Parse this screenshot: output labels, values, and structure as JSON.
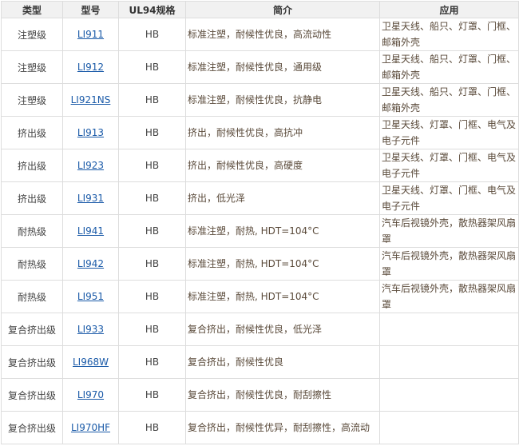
{
  "headers": [
    "类型",
    "型号",
    "UL94规格",
    "简介",
    "应用"
  ],
  "rows": [
    {
      "type": "注塑级",
      "model": "LI911",
      "ul": "HB",
      "desc": "标准注塑，耐候性优良，高流动性",
      "app": "卫星天线、船只、灯罩、门框、邮箱外壳"
    },
    {
      "type": "注塑级",
      "model": "LI912",
      "ul": "HB",
      "desc": "标准注塑，耐候性优良，通用级",
      "app": "卫星天线、船只、灯罩、门框、邮箱外壳"
    },
    {
      "type": "注塑级",
      "model": "LI921NS",
      "ul": "HB",
      "desc": "标准注塑，耐候性优良，抗静电",
      "app": "卫星天线、船只、灯罩、门框、邮箱外壳"
    },
    {
      "type": "挤出级",
      "model": "LI913",
      "ul": "HB",
      "desc": "挤出，耐候性优良，高抗冲",
      "app": "卫星天线、灯罩、门框、电气及电子元件"
    },
    {
      "type": "挤出级",
      "model": "LI923",
      "ul": "HB",
      "desc": "挤出，耐候性优良，高硬度",
      "app": "卫星天线、灯罩、门框、电气及电子元件"
    },
    {
      "type": "挤出级",
      "model": "LI931",
      "ul": "HB",
      "desc": "挤出，低光泽",
      "app": "卫星天线、灯罩、门框、电气及电子元件"
    },
    {
      "type": "耐热级",
      "model": "LI941",
      "ul": "HB",
      "desc": "标准注塑，耐热, HDT=104°C",
      "app": "汽车后视镜外壳，散热器架风扇罩"
    },
    {
      "type": "耐热级",
      "model": "LI942",
      "ul": "HB",
      "desc": "标准注塑，耐热, HDT=104°C",
      "app": "汽车后视镜外壳，散热器架风扇罩"
    },
    {
      "type": "耐热级",
      "model": "LI951",
      "ul": "HB",
      "desc": "标准注塑，耐热, HDT=104°C",
      "app": "汽车后视镜外壳，散热器架风扇罩"
    },
    {
      "type": "复合挤出级",
      "model": "LI933",
      "ul": "HB",
      "desc": "复合挤出，耐候性优良，低光泽",
      "app": ""
    },
    {
      "type": "复合挤出级",
      "model": "LI968W",
      "ul": "HB",
      "desc": "复合挤出，耐候性优良",
      "app": ""
    },
    {
      "type": "复合挤出级",
      "model": "LI970",
      "ul": "HB",
      "desc": "复合挤出，耐候性优良，耐刮擦性",
      "app": ""
    },
    {
      "type": "复合挤出级",
      "model": "LI970HF",
      "ul": "HB",
      "desc": "复合挤出，耐候性优异，耐刮擦性，高流动",
      "app": ""
    }
  ]
}
